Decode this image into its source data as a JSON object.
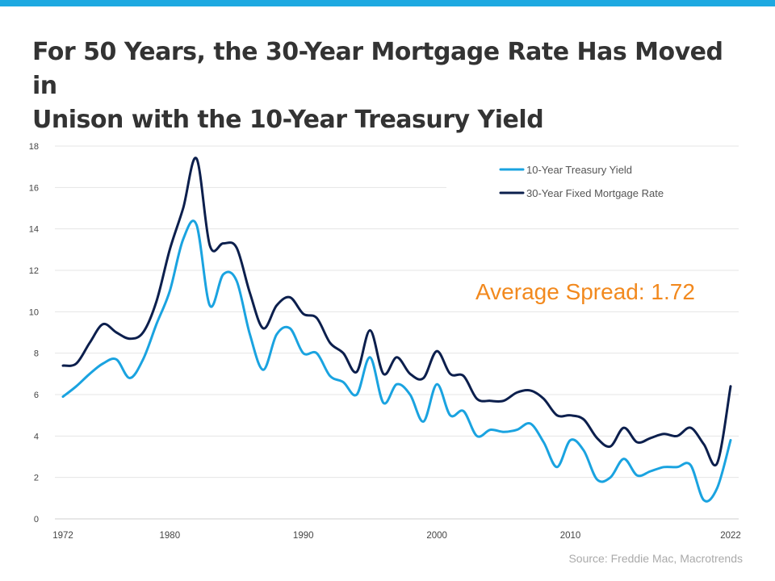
{
  "title_lines": [
    "For 50 Years, the 30-Year Mortgage Rate Has Moved in",
    "Unison with the 10-Year Treasury Yield"
  ],
  "source": "Source: Freddie Mac, Macrotrends",
  "colors": {
    "accent_bar": "#1ea9e1",
    "treasury": "#1aa3e0",
    "mortgage": "#0c1f4d",
    "annotation": "#f2891e"
  },
  "chart_data": {
    "type": "line",
    "title": "For 50 Years, the 30-Year Mortgage Rate Has Moved in Unison with the 10-Year Treasury Yield",
    "xlabel": "",
    "ylabel": "",
    "xlim": [
      1972,
      2022
    ],
    "ylim": [
      0,
      18
    ],
    "y_ticks": [
      0,
      2,
      4,
      6,
      8,
      10,
      12,
      14,
      16,
      18
    ],
    "x_ticks": [
      1972,
      1980,
      1990,
      2000,
      2010,
      2022
    ],
    "x": [
      1972,
      1973,
      1974,
      1975,
      1976,
      1977,
      1978,
      1979,
      1980,
      1981,
      1982,
      1983,
      1984,
      1985,
      1986,
      1987,
      1988,
      1989,
      1990,
      1991,
      1992,
      1993,
      1994,
      1995,
      1996,
      1997,
      1998,
      1999,
      2000,
      2001,
      2002,
      2003,
      2004,
      2005,
      2006,
      2007,
      2008,
      2009,
      2010,
      2011,
      2012,
      2013,
      2014,
      2015,
      2016,
      2017,
      2018,
      2019,
      2020,
      2021,
      2022
    ],
    "series": [
      {
        "name": "10-Year Treasury Yield",
        "values": [
          5.9,
          6.4,
          7.0,
          7.5,
          7.7,
          6.8,
          7.7,
          9.4,
          11.0,
          13.5,
          14.2,
          10.3,
          11.8,
          11.5,
          8.9,
          7.2,
          8.9,
          9.2,
          8.0,
          8.0,
          6.9,
          6.6,
          6.0,
          7.8,
          5.6,
          6.5,
          6.0,
          4.7,
          6.5,
          5.0,
          5.2,
          4.0,
          4.3,
          4.2,
          4.3,
          4.6,
          3.7,
          2.5,
          3.8,
          3.3,
          1.9,
          2.0,
          2.9,
          2.1,
          2.3,
          2.5,
          2.5,
          2.6,
          0.9,
          1.5,
          3.8
        ]
      },
      {
        "name": "30-Year Fixed Mortgage Rate",
        "values": [
          7.4,
          7.5,
          8.5,
          9.4,
          9.0,
          8.7,
          9.0,
          10.5,
          13.0,
          15.0,
          17.4,
          13.2,
          13.3,
          13.1,
          10.9,
          9.2,
          10.3,
          10.7,
          9.9,
          9.7,
          8.5,
          8.0,
          7.1,
          9.1,
          7.0,
          7.8,
          7.0,
          6.8,
          8.1,
          7.0,
          6.9,
          5.8,
          5.7,
          5.7,
          6.1,
          6.2,
          5.8,
          5.0,
          5.0,
          4.8,
          3.9,
          3.5,
          4.4,
          3.7,
          3.9,
          4.1,
          4.0,
          4.4,
          3.6,
          2.7,
          6.4
        ]
      }
    ],
    "legend": {
      "placement": "top-right",
      "entries": [
        "10-Year Treasury Yield",
        "30-Year Fixed Mortgage Rate"
      ]
    },
    "annotations": [
      "Average Spread: 1.72"
    ],
    "grid": {
      "horizontal": true,
      "vertical": false
    }
  }
}
